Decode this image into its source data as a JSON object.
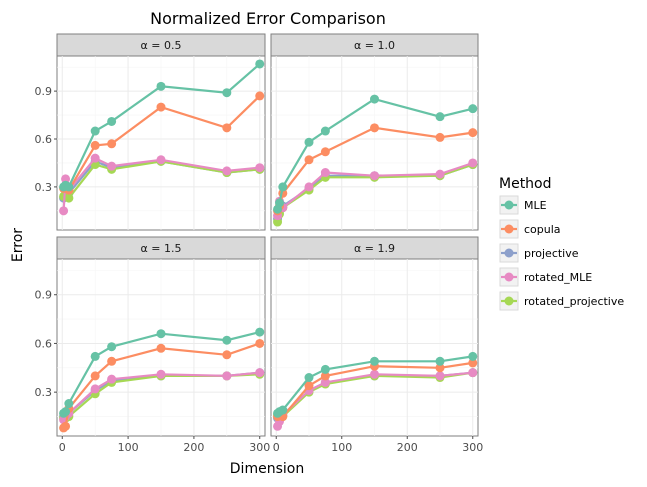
{
  "chart_data": {
    "type": "line",
    "title": "Normalized Error Comparison",
    "xlabel": "Dimension",
    "ylabel": "Error",
    "xlim": [
      -8,
      308
    ],
    "ylim": [
      0.03,
      1.12
    ],
    "xticks": [
      0,
      100,
      200,
      300
    ],
    "yticks": [
      0.3,
      0.6,
      0.9
    ],
    "yticks_minor": [
      0.15,
      0.45,
      0.75,
      1.05
    ],
    "xticks_minor": [
      50,
      150,
      250
    ],
    "grid": true,
    "legend": {
      "title": "Method",
      "position": "right",
      "entries": [
        "MLE",
        "copula",
        "projective",
        "rotated_MLE",
        "rotated_projective"
      ]
    },
    "colors": {
      "MLE": "#66c2a5",
      "copula": "#fc8d62",
      "projective": "#8da0cb",
      "rotated_MLE": "#e78ac3",
      "rotated_projective": "#a6d854"
    },
    "x": [
      2,
      5,
      10,
      50,
      75,
      150,
      250,
      300
    ],
    "panels": [
      {
        "label": "α = 0.5",
        "series": [
          {
            "name": "MLE",
            "values": [
              0.3,
              0.31,
              0.3,
              0.65,
              0.71,
              0.93,
              0.89,
              1.07
            ]
          },
          {
            "name": "copula",
            "values": [
              0.29,
              0.3,
              0.28,
              0.56,
              0.57,
              0.8,
              0.67,
              0.87
            ]
          },
          {
            "name": "projective",
            "values": [
              0.23,
              0.31,
              0.26,
              0.46,
              0.42,
              0.46,
              0.39,
              0.41
            ]
          },
          {
            "name": "rotated_MLE",
            "values": [
              0.15,
              0.35,
              0.28,
              0.48,
              0.43,
              0.47,
              0.4,
              0.42
            ]
          },
          {
            "name": "rotated_projective",
            "values": [
              0.24,
              0.26,
              0.23,
              0.44,
              0.41,
              0.46,
              0.39,
              0.41
            ]
          }
        ]
      },
      {
        "label": "α = 1.0",
        "series": [
          {
            "name": "MLE",
            "values": [
              0.16,
              0.2,
              0.3,
              0.58,
              0.65,
              0.85,
              0.74,
              0.79
            ]
          },
          {
            "name": "copula",
            "values": [
              0.15,
              0.18,
              0.26,
              0.47,
              0.52,
              0.67,
              0.61,
              0.64
            ]
          },
          {
            "name": "projective",
            "values": [
              0.1,
              0.15,
              0.18,
              0.29,
              0.37,
              0.37,
              0.37,
              0.44
            ]
          },
          {
            "name": "rotated_MLE",
            "values": [
              0.12,
              0.21,
              0.17,
              0.3,
              0.39,
              0.37,
              0.38,
              0.45
            ]
          },
          {
            "name": "rotated_projective",
            "values": [
              0.08,
              0.13,
              0.17,
              0.28,
              0.36,
              0.36,
              0.37,
              0.44
            ]
          }
        ]
      },
      {
        "label": "α = 1.5",
        "series": [
          {
            "name": "MLE",
            "values": [
              0.17,
              0.18,
              0.23,
              0.52,
              0.58,
              0.66,
              0.62,
              0.67
            ]
          },
          {
            "name": "copula",
            "values": [
              0.08,
              0.09,
              0.2,
              0.4,
              0.49,
              0.57,
              0.53,
              0.6
            ]
          },
          {
            "name": "projective",
            "values": [
              0.15,
              0.15,
              0.17,
              0.31,
              0.37,
              0.4,
              0.4,
              0.42
            ]
          },
          {
            "name": "rotated_MLE",
            "values": [
              0.13,
              0.15,
              0.17,
              0.32,
              0.38,
              0.41,
              0.4,
              0.42
            ]
          },
          {
            "name": "rotated_projective",
            "values": [
              0.14,
              0.14,
              0.15,
              0.29,
              0.36,
              0.4,
              0.4,
              0.41
            ]
          }
        ]
      },
      {
        "label": "α = 1.9",
        "series": [
          {
            "name": "MLE",
            "values": [
              0.17,
              0.18,
              0.19,
              0.39,
              0.44,
              0.49,
              0.49,
              0.52
            ]
          },
          {
            "name": "copula",
            "values": [
              0.15,
              0.16,
              0.15,
              0.34,
              0.4,
              0.46,
              0.45,
              0.48
            ]
          },
          {
            "name": "projective",
            "values": [
              0.14,
              0.15,
              0.16,
              0.31,
              0.36,
              0.4,
              0.4,
              0.42
            ]
          },
          {
            "name": "rotated_MLE",
            "values": [
              0.09,
              0.12,
              0.16,
              0.31,
              0.36,
              0.41,
              0.4,
              0.42
            ]
          },
          {
            "name": "rotated_projective",
            "values": [
              0.16,
              0.15,
              0.15,
              0.3,
              0.35,
              0.4,
              0.39,
              0.42
            ]
          }
        ]
      }
    ]
  }
}
